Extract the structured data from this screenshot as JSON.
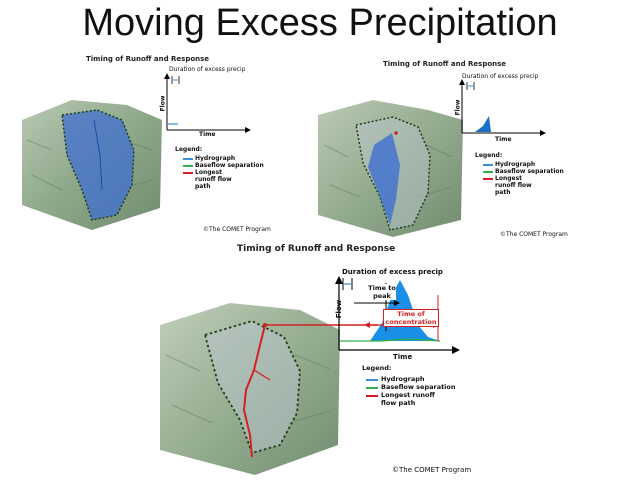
{
  "slide": {
    "title": "Moving Excess Precipitation"
  },
  "panels": [
    {
      "title": "Timing of Runoff and Response",
      "duration_label": "Duration of excess precip",
      "y_axis": "Flow",
      "x_axis": "Time",
      "legend": {
        "heading": "Legend:",
        "items": [
          "Hydrograph",
          "Baseflow separation",
          "Longest runoff flow path"
        ]
      },
      "credit": "©The COMET Program"
    },
    {
      "title": "Timing of Runoff and Response",
      "duration_label": "Duration of excess precip",
      "y_axis": "Flow",
      "x_axis": "Time",
      "legend": {
        "heading": "Legend:",
        "items": [
          "Hydrograph",
          "Baseflow separation",
          "Longest runoff flow path"
        ]
      },
      "credit": "©The COMET Program"
    },
    {
      "title": "Timing of Runoff and Response",
      "duration_label": "Duration of excess precip",
      "y_axis": "Flow",
      "x_axis": "Time",
      "time_to_peak": "Time to peak",
      "time_of_concentration": "Time of concentration",
      "legend": {
        "heading": "Legend:",
        "items": [
          "Hydrograph",
          "Baseflow separation",
          "Longest runoff flow path"
        ]
      },
      "credit": "©The COMET Program"
    }
  ],
  "colors": {
    "hydrograph": "#3a8fd8",
    "baseflow": "#2fb24a",
    "flow_path": "#d42020",
    "watershed": "#3f6fd0"
  }
}
